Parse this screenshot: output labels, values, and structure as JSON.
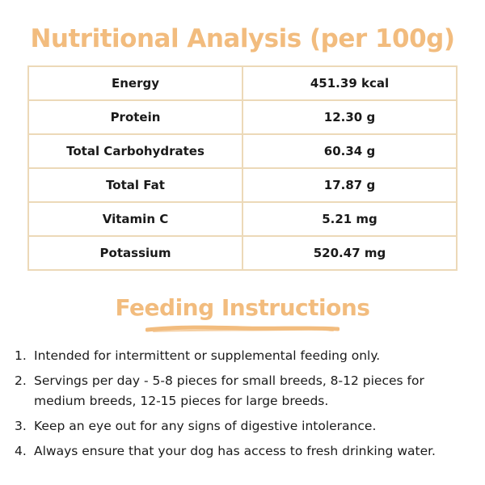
{
  "nutrition": {
    "title": "Nutritional Analysis (per 100g)",
    "rows": [
      {
        "label": "Energy",
        "value": "451.39 kcal"
      },
      {
        "label": "Protein",
        "value": "12.30 g"
      },
      {
        "label": "Total Carbohydrates",
        "value": "60.34 g"
      },
      {
        "label": "Total Fat",
        "value": "17.87 g"
      },
      {
        "label": "Vitamin C",
        "value": "5.21 mg"
      },
      {
        "label": "Potassium",
        "value": "520.47 mg"
      }
    ]
  },
  "feeding": {
    "title": "Feeding Instructions",
    "items": [
      {
        "num": "1.",
        "text": "Intended for intermittent or supplemental feeding only."
      },
      {
        "num": "2.",
        "text": "Servings per day - 5-8 pieces for small breeds, 8-12 pieces for medium breeds, 12-15 pieces for large breeds."
      },
      {
        "num": "3.",
        "text": "Keep an eye out for any signs of digestive intolerance."
      },
      {
        "num": "4.",
        "text": "Always ensure that your dog has access to fresh drinking water."
      }
    ]
  },
  "colors": {
    "accent": "#f2bc7e",
    "table_border": "#ecd9b8",
    "text": "#1a1a1a"
  }
}
